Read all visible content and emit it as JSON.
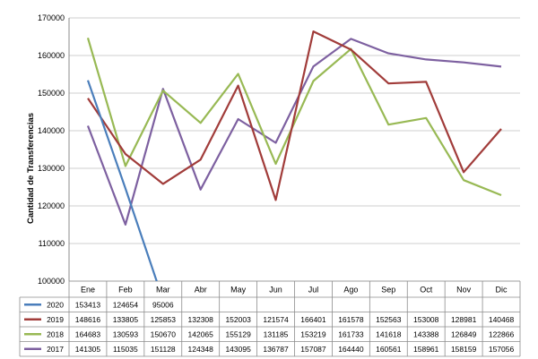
{
  "chart_data": {
    "type": "line",
    "title": "",
    "xlabel": "",
    "ylabel": "Cantidad de Transferencias",
    "ylim": [
      100000,
      170000
    ],
    "yticks": [
      100000,
      110000,
      120000,
      130000,
      140000,
      150000,
      160000,
      170000
    ],
    "grid": true,
    "legend": "data-table-below",
    "categories": [
      "Ene",
      "Feb",
      "Mar",
      "Abr",
      "May",
      "Jun",
      "Jul",
      "Ago",
      "Sep",
      "Oct",
      "Nov",
      "Dic"
    ],
    "series": [
      {
        "name": "2020",
        "color": "#4a7ebb",
        "values": [
          153413,
          124654,
          95006,
          null,
          null,
          null,
          null,
          null,
          null,
          null,
          null,
          null
        ]
      },
      {
        "name": "2019",
        "color": "#a13c3a",
        "values": [
          148616,
          133805,
          125853,
          132308,
          152003,
          121574,
          166401,
          161578,
          152563,
          153008,
          128981,
          140468
        ]
      },
      {
        "name": "2018",
        "color": "#98b954",
        "values": [
          164683,
          130593,
          150670,
          142065,
          155129,
          131185,
          153219,
          161733,
          141618,
          143388,
          126849,
          122866
        ]
      },
      {
        "name": "2017",
        "color": "#7d60a0",
        "values": [
          141305,
          115035,
          151128,
          124348,
          143095,
          136787,
          157087,
          164440,
          160561,
          158961,
          158159,
          157056
        ]
      }
    ]
  }
}
